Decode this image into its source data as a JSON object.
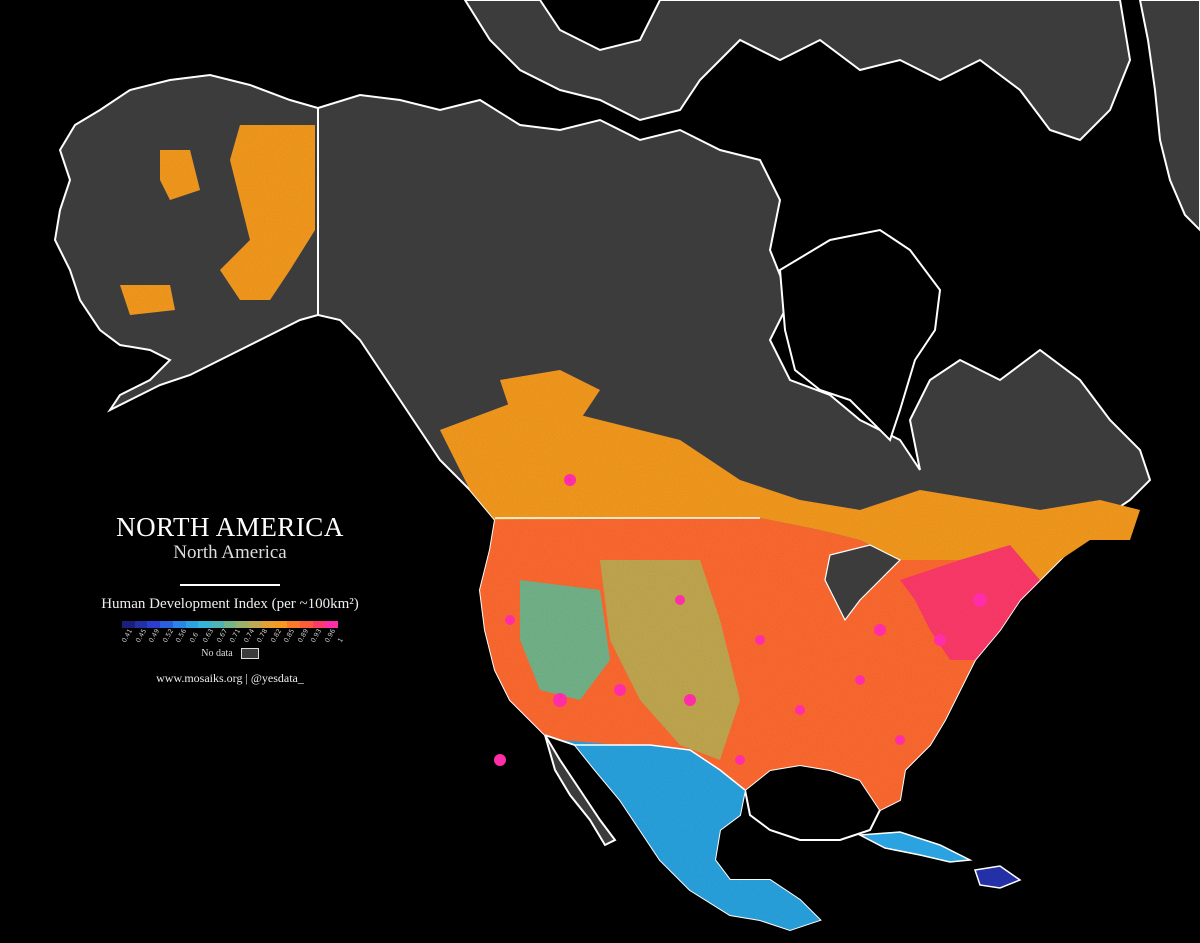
{
  "map": {
    "title": "NORTH AMERICA",
    "subtitle": "North America",
    "legend": {
      "label": "Human Development Index (per ~100km²)",
      "ticks": [
        "0.41",
        "0.45",
        "0.49",
        "0.52",
        "0.56",
        "0.6",
        "0.63",
        "0.67",
        "0.71",
        "0.74",
        "0.78",
        "0.82",
        "0.85",
        "0.89",
        "0.93",
        "0.96",
        "1"
      ],
      "colors": [
        "#1a1f7a",
        "#2430a6",
        "#2a3fd0",
        "#2a5fe0",
        "#2a86e6",
        "#2aa3e0",
        "#35b6d8",
        "#4fb3b6",
        "#74b48a",
        "#9cb06a",
        "#c2a850",
        "#e8a030",
        "#f59a1e",
        "#ff7a28",
        "#ff5a3a",
        "#ff3a6a",
        "#ff2ea8"
      ],
      "no_data_label": "No data",
      "no_data_color": "#3c3c3c"
    },
    "credit": "www.mosaiks.org | @yesdata_",
    "colors": {
      "background": "#000000",
      "land_no_data": "#3c3c3c",
      "coastline": "#ffffff"
    }
  }
}
